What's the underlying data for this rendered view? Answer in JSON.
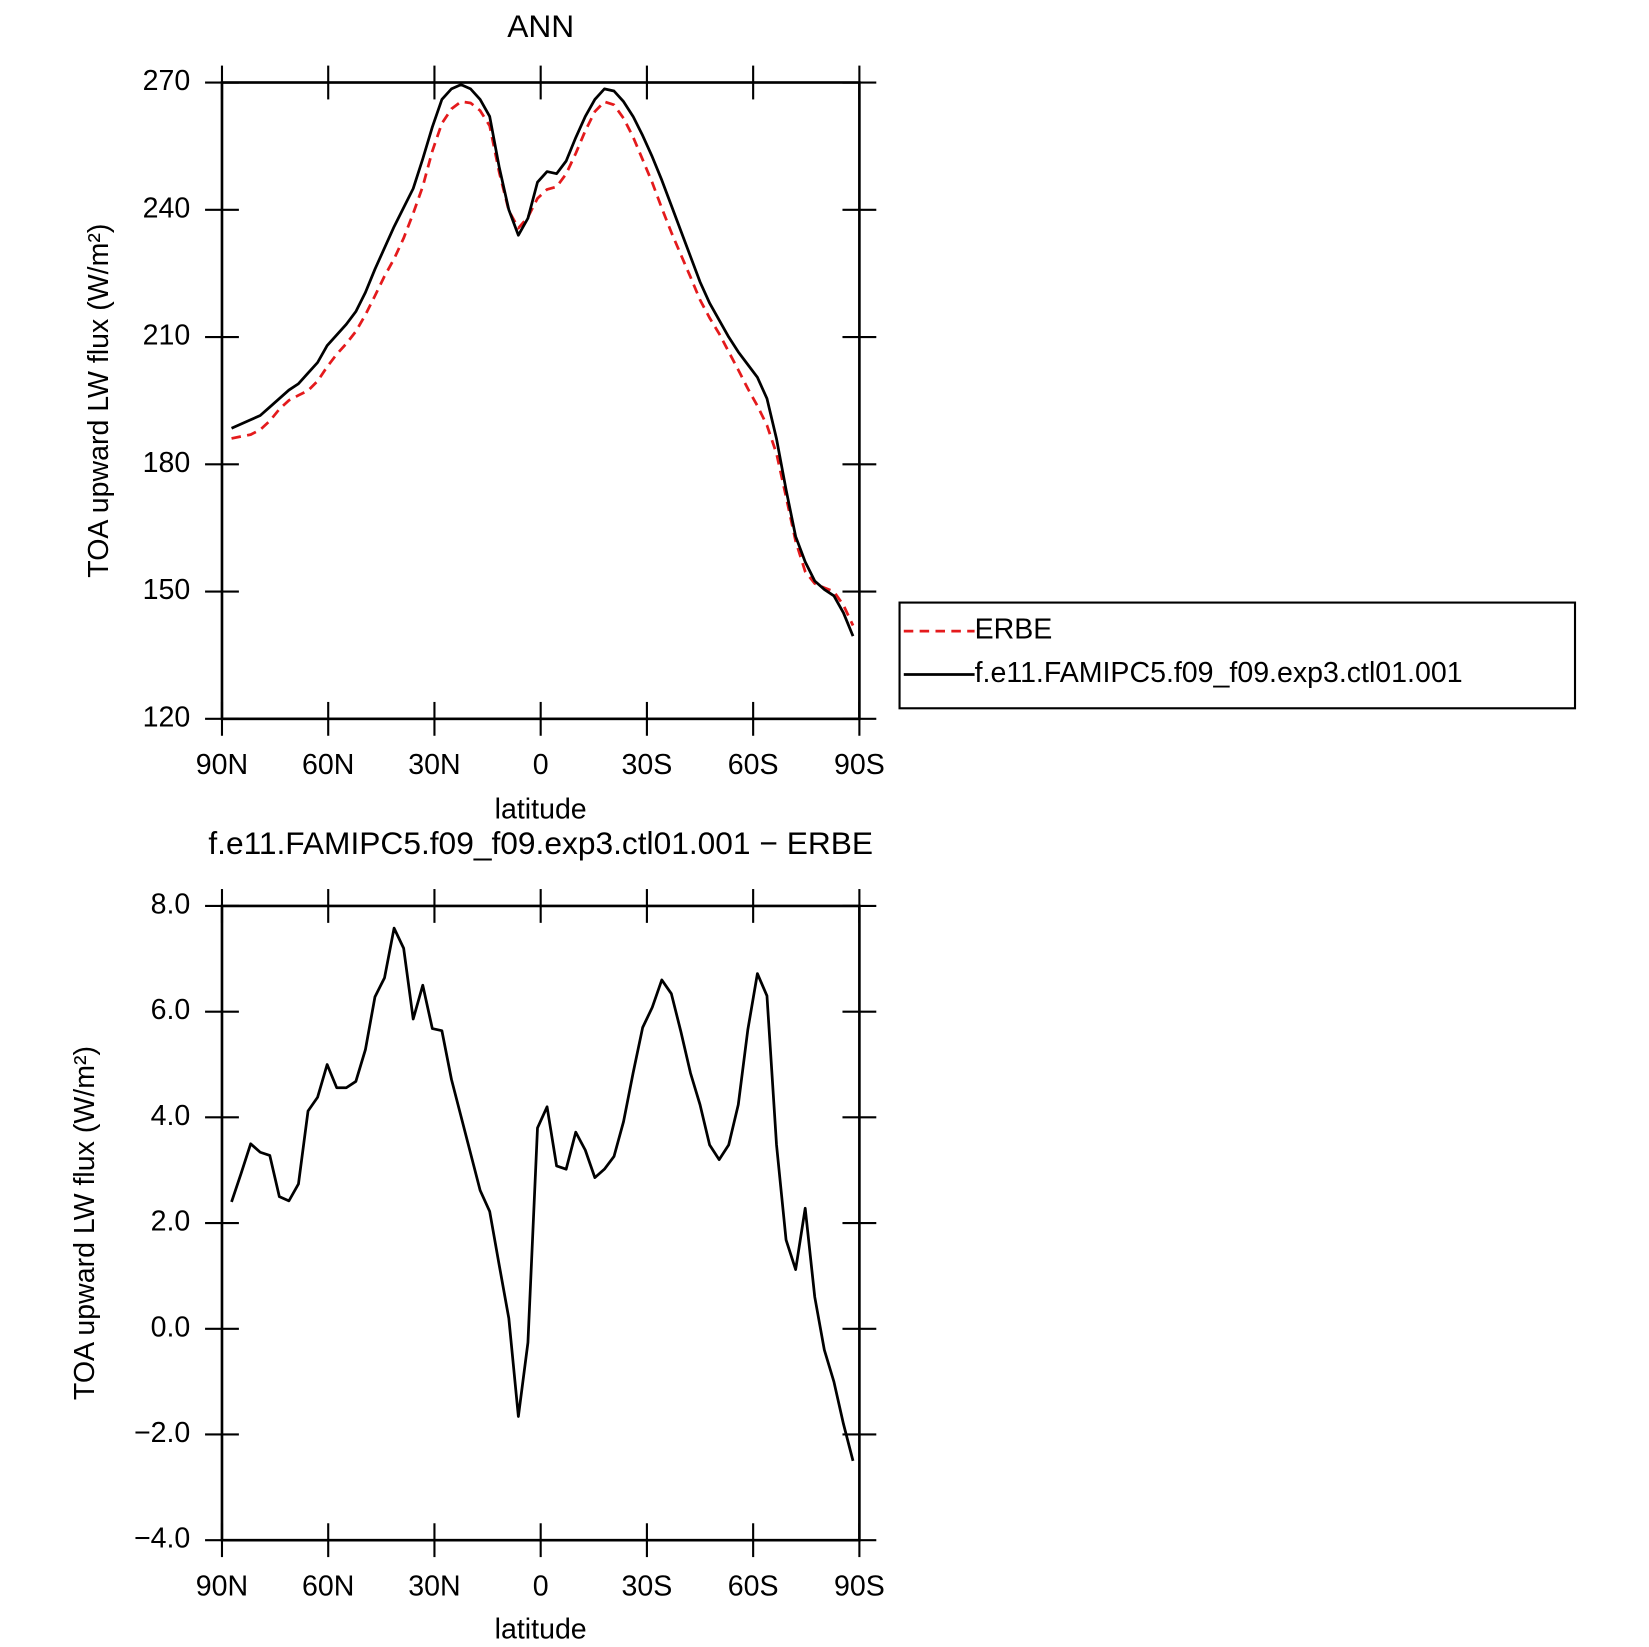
{
  "chart_data": [
    {
      "type": "line",
      "title": "ANN",
      "xlabel": "latitude",
      "ylabel": "TOA upward LW flux (W/m²)",
      "x": [
        87.3,
        84.6,
        81.9,
        79.2,
        76.5,
        73.8,
        71.1,
        68.4,
        65.7,
        63,
        60.3,
        57.6,
        54.9,
        52.2,
        49.5,
        46.8,
        44.1,
        41.4,
        38.7,
        36,
        33.3,
        30.6,
        27.9,
        25.2,
        22.5,
        19.8,
        17.1,
        14.4,
        11.7,
        9,
        6.3,
        3.6,
        0.9,
        -1.8,
        -4.5,
        -7.2,
        -9.9,
        -12.6,
        -15.3,
        -18,
        -20.7,
        -23.4,
        -26.1,
        -28.8,
        -31.5,
        -34.2,
        -36.9,
        -39.6,
        -42.3,
        -45,
        -47.7,
        -50.4,
        -53.1,
        -55.8,
        -58.5,
        -61.2,
        -63.9,
        -66.6,
        -69.3,
        -72,
        -74.7,
        -77.4,
        -80.1,
        -82.8,
        -85.5,
        -88.2
      ],
      "series": [
        {
          "name": "ERBE",
          "color": "#e41a1c",
          "style": "dashed",
          "values": [
            186.1,
            186.56,
            187.0,
            188.16,
            190.22,
            193.0,
            195.08,
            196.26,
            197.38,
            199.62,
            203,
            205.94,
            208.44,
            211.32,
            215.22,
            219.72,
            224.36,
            228.42,
            233.3,
            239.14,
            245.5,
            253.82,
            260.36,
            263.78,
            265.48,
            265.18,
            263.38,
            259.78,
            248.8,
            239.8,
            235.66,
            238.26,
            242.7,
            244.8,
            245.42,
            248.48,
            253.28,
            258.62,
            263.14,
            265.48,
            264.74,
            261.58,
            257.16,
            251.8,
            246.42,
            240.4,
            234.66,
            229.38,
            224.16,
            218.76,
            214.52,
            210.8,
            206.52,
            202.26,
            197.84,
            193.78,
            189.2,
            182.52,
            172.32,
            161.88,
            154.72,
            151.9,
            150.9,
            150.0,
            146.8,
            142.0
          ]
        },
        {
          "name": "f.e11.FAMIPC5.f09_f09.exp3.ctl01.001",
          "color": "#000000",
          "style": "solid",
          "values": [
            188.5,
            189.5,
            190.5,
            191.5,
            193.5,
            195.5,
            197.5,
            199,
            201.5,
            204,
            208,
            210.5,
            213,
            216,
            220.5,
            226,
            231,
            236,
            240.5,
            245,
            252,
            259.5,
            266,
            268.5,
            269.5,
            268.5,
            266,
            262,
            250,
            240,
            234,
            238,
            246.5,
            249,
            248.5,
            251.5,
            257,
            262,
            266,
            268.5,
            268,
            265.5,
            262,
            257.5,
            252.5,
            247,
            241,
            235,
            229,
            223,
            218,
            214,
            210,
            206.5,
            203.5,
            200.5,
            195.5,
            186,
            174,
            163,
            157,
            152.5,
            150.5,
            149,
            145,
            139.5
          ]
        }
      ],
      "xlim": [
        90,
        -90
      ],
      "xticks": [
        {
          "value": 90,
          "label": "90N"
        },
        {
          "value": 60,
          "label": "60N"
        },
        {
          "value": 30,
          "label": "30N"
        },
        0,
        {
          "value": -30,
          "label": "30S"
        },
        {
          "value": -60,
          "label": "60S"
        },
        {
          "value": -90,
          "label": "90S"
        }
      ],
      "ylim": [
        120,
        270
      ],
      "yticks": [
        120,
        150,
        180,
        210,
        240,
        270
      ],
      "legend": "right"
    },
    {
      "type": "line",
      "title": "f.e11.FAMIPC5.f09_f09.exp3.ctl01.001 − ERBE",
      "xlabel": "latitude",
      "ylabel": "TOA upward LW flux (W/m²)",
      "x": [
        87.3,
        84.6,
        81.9,
        79.2,
        76.5,
        73.8,
        71.1,
        68.4,
        65.7,
        63,
        60.3,
        57.6,
        54.9,
        52.2,
        49.5,
        46.8,
        44.1,
        41.4,
        38.7,
        36,
        33.3,
        30.6,
        27.9,
        25.2,
        22.5,
        19.8,
        17.1,
        14.4,
        11.7,
        9,
        6.3,
        3.6,
        0.9,
        -1.8,
        -4.5,
        -7.2,
        -9.9,
        -12.6,
        -15.3,
        -18,
        -20.7,
        -23.4,
        -26.1,
        -28.8,
        -31.5,
        -34.2,
        -36.9,
        -39.6,
        -42.3,
        -45,
        -47.7,
        -50.4,
        -53.1,
        -55.8,
        -58.5,
        -61.2,
        -63.9,
        -66.6,
        -69.3,
        -72,
        -74.7,
        -77.4,
        -80.1,
        -82.8,
        -85.5,
        -88.2
      ],
      "values": [
        2.4,
        2.94,
        3.5,
        3.34,
        3.28,
        2.5,
        2.42,
        2.74,
        4.12,
        4.38,
        5.0,
        4.56,
        4.56,
        4.68,
        5.28,
        6.28,
        6.64,
        7.58,
        7.2,
        5.86,
        6.5,
        5.68,
        5.64,
        4.72,
        4.02,
        3.32,
        2.62,
        2.22,
        1.2,
        0.2,
        -1.66,
        -0.26,
        3.8,
        4.2,
        3.08,
        3.02,
        3.72,
        3.38,
        2.86,
        3.02,
        3.26,
        3.92,
        4.84,
        5.7,
        6.08,
        6.6,
        6.34,
        5.62,
        4.84,
        4.24,
        3.48,
        3.2,
        3.48,
        4.24,
        5.66,
        6.72,
        6.3,
        3.48,
        1.68,
        1.12,
        2.28,
        0.6,
        -0.4,
        -1.0,
        -1.8,
        -2.5
      ],
      "color": "#000000",
      "style": "solid",
      "xlim": [
        90,
        -90
      ],
      "xticks": [
        {
          "value": 90,
          "label": "90N"
        },
        {
          "value": 60,
          "label": "60N"
        },
        {
          "value": 30,
          "label": "30N"
        },
        0,
        {
          "value": -30,
          "label": "30S"
        },
        {
          "value": -60,
          "label": "60S"
        },
        {
          "value": -90,
          "label": "90S"
        }
      ],
      "ylim": [
        -4,
        8
      ],
      "yticks": [
        {
          "value": -4,
          "label": "−4.0"
        },
        {
          "value": -2,
          "label": "−2.0"
        },
        {
          "value": 0,
          "label": "0.0"
        },
        {
          "value": 2,
          "label": "2.0"
        },
        {
          "value": 4,
          "label": "4.0"
        },
        {
          "value": 6,
          "label": "6.0"
        },
        {
          "value": 8,
          "label": "8.0"
        }
      ]
    }
  ]
}
